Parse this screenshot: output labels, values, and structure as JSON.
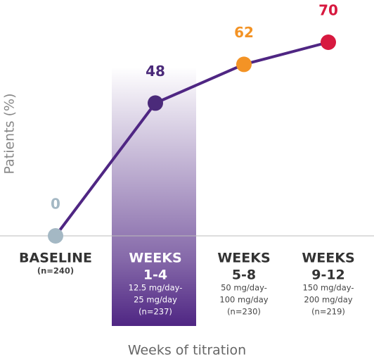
{
  "chart_data": {
    "type": "line",
    "y_label": "Patients (%)",
    "x_label": "Weeks of titration",
    "categories": [
      [
        "BASELINE"
      ],
      [
        "WEEKS",
        "1-4"
      ],
      [
        "WEEKS",
        "5-8"
      ],
      [
        "WEEKS",
        "9-12"
      ]
    ],
    "category_notes": [
      [
        "(n=240)"
      ],
      [
        "12.5 mg/day-",
        "25 mg/day",
        "(n=237)"
      ],
      [
        "50 mg/day-",
        "100 mg/day",
        "(n=230)"
      ],
      [
        "150 mg/day-",
        "200 mg/day",
        "(n=219)"
      ]
    ],
    "values": [
      0,
      48,
      62,
      70
    ],
    "point_colors": [
      "#a4b8c4",
      "#4b2a7a",
      "#f39325",
      "#d7193f"
    ],
    "line_color": "#4f2683",
    "highlight_category": 1,
    "ylim": [
      0,
      70
    ]
  }
}
